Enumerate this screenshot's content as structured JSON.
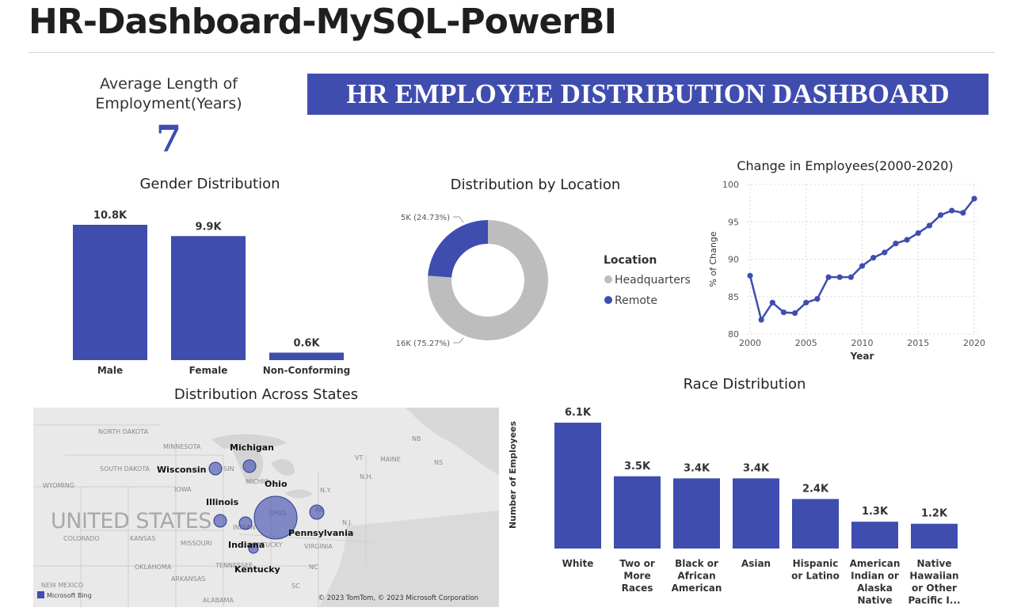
{
  "page": {
    "title": "HR-Dashboard-MySQL-PowerBI"
  },
  "kpi": {
    "label_line1": "Average Length of",
    "label_line2": "Employment(Years)",
    "value": "7"
  },
  "banner": {
    "text": "HR EMPLOYEE DISTRIBUTION DASHBOARD"
  },
  "colors": {
    "primary": "#3F4DAF",
    "secondary": "#BDBDBD",
    "map_bg": "#E9E9E9"
  },
  "map": {
    "title": "Distribution Across States",
    "country_label": "UNITED STATES",
    "attribution": "© 2023 TomTom, © 2023 Microsoft Corporation",
    "provider": "Microsoft Bing",
    "states_bold": [
      "Michigan",
      "Wisconsin",
      "Ohio",
      "Illinois",
      "Indiana",
      "Pennsylvania",
      "Kentucky"
    ],
    "background_labels": [
      "NORTH DAKOTA",
      "MINNESOTA",
      "SOUTH DAKOTA",
      "WYOMING",
      "IOWA",
      "COLORADO",
      "KANSAS",
      "MISSOURI",
      "OKLAHOMA",
      "ARKANSAS",
      "TENNESSEE",
      "NEW MEXICO",
      "ALABAMA",
      "VIRGINIA",
      "MAINE",
      "NB",
      "NS",
      "VT",
      "N.H.",
      "N.Y.",
      "N.J.",
      "NC",
      "SC",
      "MICHIG",
      "OHIO",
      "PA",
      "INDIAN",
      "KENTUCKY",
      "SIN"
    ]
  },
  "chart_data": [
    {
      "id": "gender",
      "type": "bar",
      "title": "Gender Distribution",
      "categories": [
        "Male",
        "Female",
        "Non-Conforming"
      ],
      "values": [
        10800,
        9900,
        600
      ],
      "data_labels": [
        "10.8K",
        "9.9K",
        "0.6K"
      ],
      "color": "#3F4DAF"
    },
    {
      "id": "location",
      "type": "pie",
      "title": "Distribution by Location",
      "legend_title": "Location",
      "labels": [
        "Headquarters",
        "Remote"
      ],
      "values": [
        16000,
        5000
      ],
      "percents": [
        75.27,
        24.73
      ],
      "data_labels": [
        "16K (75.27%)",
        "5K (24.73%)"
      ],
      "colors": [
        "#BDBDBD",
        "#3F4DAF"
      ]
    },
    {
      "id": "change",
      "type": "line",
      "title": "Change in Employees(2000-2020)",
      "xlabel": "Year",
      "ylabel": "% of Change",
      "x": [
        2000,
        2001,
        2002,
        2003,
        2004,
        2005,
        2006,
        2007,
        2008,
        2009,
        2010,
        2011,
        2012,
        2013,
        2014,
        2015,
        2016,
        2017,
        2018,
        2019,
        2020
      ],
      "y": [
        87.8,
        81.9,
        84.2,
        82.9,
        82.8,
        84.2,
        84.7,
        87.6,
        87.6,
        87.6,
        89.1,
        90.2,
        90.9,
        92.1,
        92.6,
        93.5,
        94.5,
        95.9,
        96.5,
        96.2,
        98.1
      ],
      "xlim": [
        2000,
        2020
      ],
      "ylim": [
        80,
        100
      ],
      "xticks": [
        2000,
        2005,
        2010,
        2015,
        2020
      ],
      "yticks": [
        80,
        85,
        90,
        95,
        100
      ],
      "grid": true,
      "color": "#3F4DAF"
    },
    {
      "id": "race",
      "type": "bar",
      "title": "Race Distribution",
      "ylabel": "Number of Employees",
      "categories": [
        [
          "White"
        ],
        [
          "Two or",
          "More",
          "Races"
        ],
        [
          "Black or",
          "African",
          "American"
        ],
        [
          "Asian"
        ],
        [
          "Hispanic",
          "or Latino"
        ],
        [
          "American",
          "Indian or",
          "Alaska",
          "Native"
        ],
        [
          "Native",
          "Hawaiian",
          "or Other",
          "Pacific I..."
        ]
      ],
      "values": [
        6100,
        3500,
        3400,
        3400,
        2400,
        1300,
        1200
      ],
      "data_labels": [
        "6.1K",
        "3.5K",
        "3.4K",
        "3.4K",
        "2.4K",
        "1.3K",
        "1.2K"
      ],
      "color": "#3F4DAF"
    }
  ]
}
